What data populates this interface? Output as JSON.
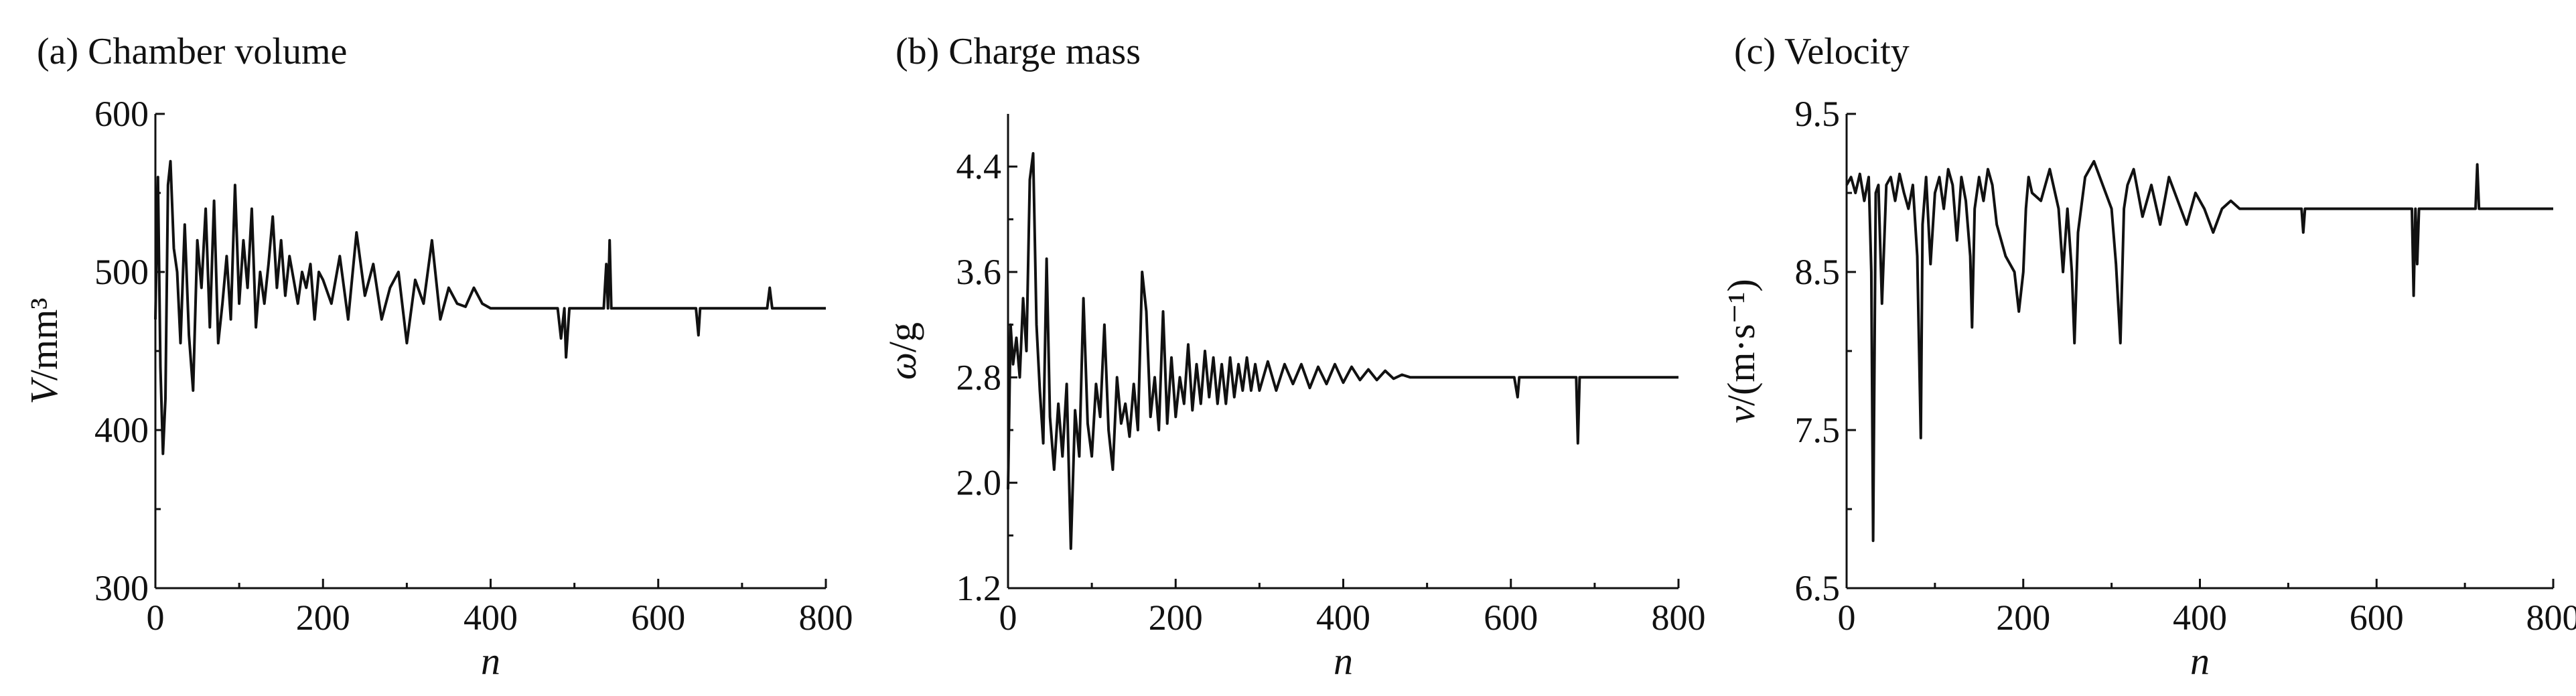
{
  "chart_data": [
    {
      "type": "line",
      "panel_label": "(a) Chamber volume",
      "ylabel_symbol": "V",
      "ylabel_rest": "/mm³",
      "xlabel": "n",
      "xlim": [
        0,
        800
      ],
      "ylim": [
        300,
        600
      ],
      "xticks": [
        0,
        200,
        400,
        600,
        800
      ],
      "yticks": [
        300,
        400,
        500,
        600
      ],
      "series": [
        {
          "x": [
            0,
            3,
            6,
            9,
            12,
            15,
            18,
            22,
            26,
            30,
            35,
            40,
            45,
            50,
            55,
            60,
            65,
            70,
            75,
            80,
            85,
            90,
            95,
            100,
            105,
            110,
            115,
            120,
            125,
            130,
            135,
            140,
            145,
            150,
            155,
            160,
            165,
            170,
            175,
            180,
            185,
            190,
            195,
            200,
            210,
            220,
            230,
            240,
            250,
            260,
            270,
            280,
            290,
            300,
            310,
            320,
            330,
            340,
            350,
            360,
            370,
            380,
            390,
            400,
            480,
            484,
            488,
            490,
            494,
            498,
            500,
            535,
            538,
            540,
            542,
            544,
            546,
            548,
            550,
            640,
            645,
            648,
            650,
            730,
            733,
            736,
            740,
            800
          ],
          "y": [
            470,
            560,
            440,
            385,
            420,
            555,
            570,
            515,
            500,
            455,
            530,
            460,
            425,
            520,
            490,
            540,
            465,
            545,
            455,
            480,
            510,
            470,
            555,
            480,
            520,
            490,
            540,
            465,
            500,
            480,
            505,
            535,
            490,
            520,
            485,
            510,
            495,
            480,
            500,
            490,
            505,
            470,
            500,
            495,
            480,
            510,
            470,
            525,
            485,
            505,
            470,
            490,
            500,
            455,
            495,
            480,
            520,
            470,
            490,
            480,
            478,
            490,
            480,
            477,
            477,
            458,
            477,
            446,
            477,
            477,
            477,
            477,
            505,
            477,
            520,
            477,
            477,
            477,
            477,
            477,
            477,
            460,
            477,
            477,
            490,
            477,
            477,
            477
          ]
        }
      ]
    },
    {
      "type": "line",
      "panel_label": "(b) Charge mass",
      "ylabel_symbol": "ω",
      "ylabel_rest": "/g",
      "xlabel": "n",
      "xlim": [
        0,
        800
      ],
      "ylim": [
        1.2,
        4.8
      ],
      "xticks": [
        0,
        200,
        400,
        600,
        800
      ],
      "yticks": [
        1.2,
        2.0,
        2.8,
        3.6,
        4.4
      ],
      "series": [
        {
          "x": [
            0,
            3,
            6,
            10,
            14,
            18,
            22,
            26,
            30,
            34,
            38,
            42,
            46,
            50,
            55,
            60,
            65,
            70,
            75,
            80,
            85,
            90,
            95,
            100,
            105,
            110,
            115,
            120,
            125,
            130,
            135,
            140,
            145,
            150,
            155,
            160,
            165,
            170,
            175,
            180,
            185,
            190,
            195,
            200,
            205,
            210,
            215,
            220,
            225,
            230,
            235,
            240,
            245,
            250,
            255,
            260,
            265,
            270,
            275,
            280,
            285,
            290,
            295,
            300,
            310,
            320,
            330,
            340,
            350,
            360,
            370,
            380,
            390,
            400,
            410,
            420,
            430,
            440,
            450,
            460,
            470,
            480,
            490,
            600,
            604,
            608,
            610,
            675,
            678,
            680,
            682,
            685,
            800
          ],
          "y": [
            1.95,
            3.2,
            2.9,
            3.1,
            2.8,
            3.4,
            3.0,
            4.3,
            4.5,
            3.2,
            2.7,
            2.3,
            3.7,
            2.5,
            2.1,
            2.6,
            2.2,
            2.75,
            1.5,
            2.55,
            2.2,
            3.4,
            2.45,
            2.2,
            2.75,
            2.5,
            3.2,
            2.4,
            2.1,
            2.8,
            2.45,
            2.6,
            2.35,
            2.75,
            2.4,
            3.6,
            3.3,
            2.5,
            2.8,
            2.4,
            3.3,
            2.45,
            2.95,
            2.5,
            2.8,
            2.6,
            3.05,
            2.55,
            2.9,
            2.6,
            3.0,
            2.65,
            2.95,
            2.6,
            2.9,
            2.6,
            2.95,
            2.65,
            2.9,
            2.7,
            2.95,
            2.7,
            2.9,
            2.7,
            2.92,
            2.7,
            2.9,
            2.75,
            2.9,
            2.72,
            2.88,
            2.75,
            2.9,
            2.76,
            2.88,
            2.78,
            2.86,
            2.78,
            2.85,
            2.79,
            2.82,
            2.8,
            2.8,
            2.8,
            2.8,
            2.65,
            2.8,
            2.8,
            2.8,
            2.3,
            2.8,
            2.8,
            2.8
          ]
        }
      ]
    },
    {
      "type": "line",
      "panel_label": "(c) Velocity",
      "ylabel_symbol": "v",
      "ylabel_rest": "/(m·s⁻¹)",
      "xlabel": "n",
      "xlim": [
        0,
        800
      ],
      "ylim": [
        6.5,
        9.5
      ],
      "xticks": [
        0,
        200,
        400,
        600,
        800
      ],
      "yticks": [
        6.5,
        7.5,
        8.5,
        9.5
      ],
      "series": [
        {
          "x": [
            0,
            5,
            10,
            15,
            20,
            25,
            28,
            30,
            33,
            36,
            40,
            45,
            50,
            55,
            60,
            65,
            70,
            75,
            80,
            84,
            86,
            90,
            95,
            100,
            105,
            110,
            115,
            120,
            125,
            130,
            135,
            140,
            142,
            145,
            150,
            155,
            160,
            165,
            170,
            180,
            190,
            195,
            200,
            203,
            206,
            210,
            220,
            230,
            240,
            245,
            250,
            255,
            258,
            262,
            270,
            280,
            290,
            300,
            305,
            310,
            314,
            318,
            325,
            335,
            345,
            355,
            365,
            375,
            385,
            395,
            405,
            415,
            425,
            435,
            445,
            450,
            515,
            517,
            519,
            640,
            642,
            644,
            646,
            648,
            650,
            712,
            714,
            716,
            800
          ],
          "y": [
            9.05,
            9.1,
            9.0,
            9.12,
            8.95,
            9.1,
            8.5,
            6.8,
            9.0,
            9.05,
            8.3,
            9.05,
            9.1,
            8.95,
            9.12,
            9.0,
            8.9,
            9.05,
            8.6,
            7.45,
            8.8,
            9.1,
            8.55,
            9.0,
            9.1,
            8.9,
            9.15,
            9.05,
            8.7,
            9.1,
            8.95,
            8.6,
            8.15,
            8.9,
            9.1,
            8.95,
            9.15,
            9.05,
            8.8,
            8.6,
            8.5,
            8.25,
            8.5,
            8.9,
            9.1,
            9.0,
            8.95,
            9.15,
            8.9,
            8.5,
            8.9,
            8.5,
            8.05,
            8.75,
            9.1,
            9.2,
            9.05,
            8.9,
            8.55,
            8.05,
            8.9,
            9.05,
            9.15,
            8.85,
            9.05,
            8.8,
            9.1,
            8.95,
            8.8,
            9.0,
            8.9,
            8.75,
            8.9,
            8.95,
            8.9,
            8.9,
            8.9,
            8.75,
            8.9,
            8.9,
            8.35,
            8.9,
            8.55,
            8.9,
            8.9,
            8.9,
            9.18,
            8.9,
            8.9
          ]
        }
      ]
    }
  ]
}
